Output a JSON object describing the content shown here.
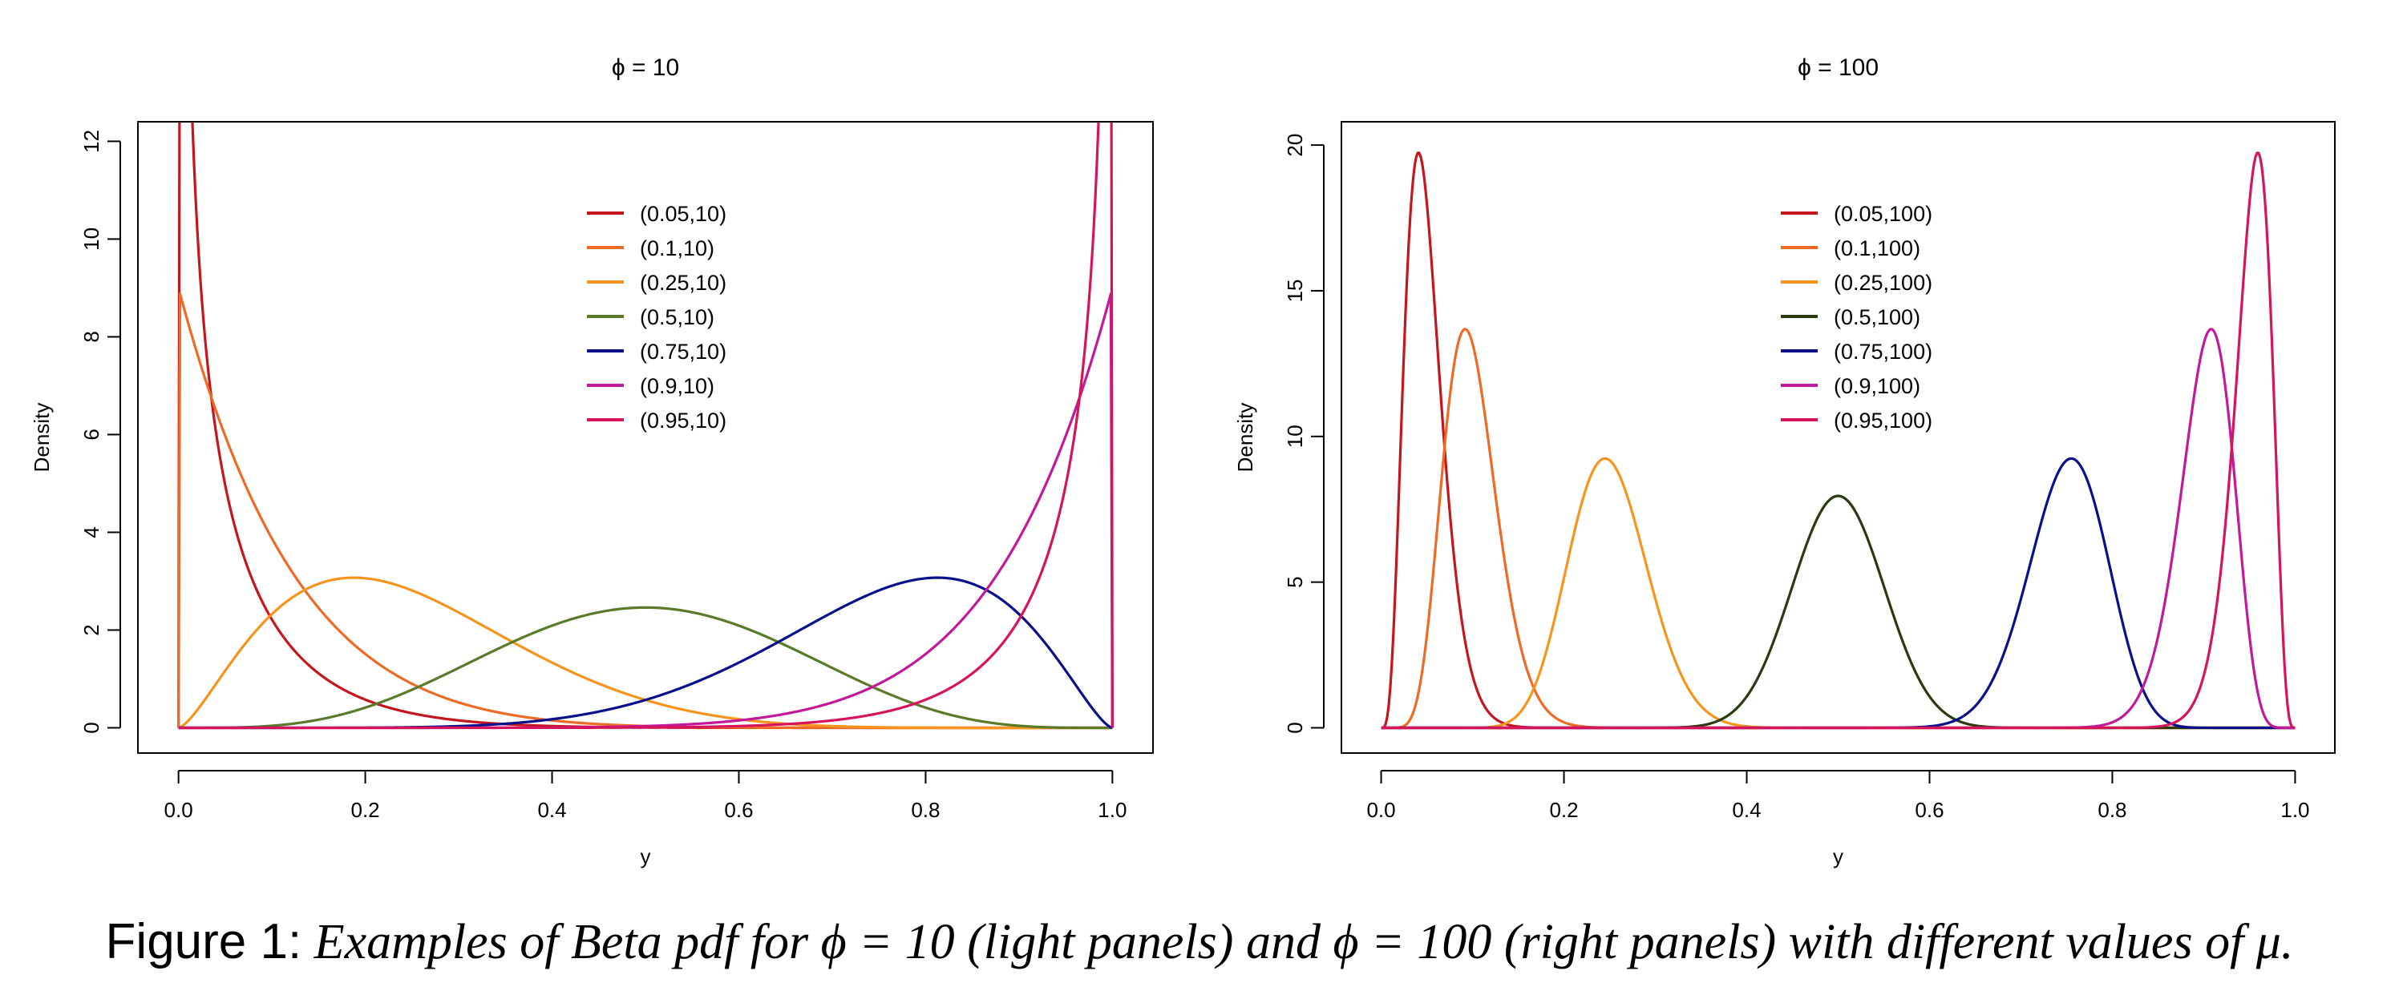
{
  "figure": {
    "caption_label": "Figure 1:",
    "caption_text": " Examples of Beta pdf for ϕ = 10 (light panels) and ϕ = 100 (right panels) with different values of μ."
  },
  "chart_data": [
    {
      "type": "line",
      "title": "ϕ = 10",
      "xlabel": "y",
      "ylabel": "Density",
      "xlim": [
        0,
        1
      ],
      "ylim": [
        0,
        12.4
      ],
      "xticks": [
        0.0,
        0.2,
        0.4,
        0.6,
        0.8,
        1.0
      ],
      "xtick_labels": [
        "0.0",
        "0.2",
        "0.4",
        "0.6",
        "0.8",
        "1.0"
      ],
      "yticks": [
        0,
        2,
        4,
        6,
        8,
        10,
        12
      ],
      "ytick_labels": [
        "0",
        "2",
        "4",
        "6",
        "8",
        "10",
        "12"
      ],
      "grid": false,
      "legend_position": "top-center",
      "phi": 10,
      "series": [
        {
          "name": "(0.05,10)",
          "mu": 0.05,
          "color": "#c4161c"
        },
        {
          "name": "(0.1,10)",
          "mu": 0.1,
          "color": "#ef6a25"
        },
        {
          "name": "(0.25,10)",
          "mu": 0.25,
          "color": "#f7941d"
        },
        {
          "name": "(0.5,10)",
          "mu": 0.5,
          "color": "#5a7a2a"
        },
        {
          "name": "(0.75,10)",
          "mu": 0.75,
          "color": "#0a0f8c"
        },
        {
          "name": "(0.9,10)",
          "mu": 0.9,
          "color": "#c2199b"
        },
        {
          "name": "(0.95,10)",
          "mu": 0.95,
          "color": "#d6145c"
        }
      ]
    },
    {
      "type": "line",
      "title": "ϕ = 100",
      "xlabel": "y",
      "ylabel": "Density",
      "xlim": [
        0,
        1
      ],
      "ylim": [
        0,
        20.8
      ],
      "xticks": [
        0.0,
        0.2,
        0.4,
        0.6,
        0.8,
        1.0
      ],
      "xtick_labels": [
        "0.0",
        "0.2",
        "0.4",
        "0.6",
        "0.8",
        "1.0"
      ],
      "yticks": [
        0,
        5,
        10,
        15,
        20
      ],
      "ytick_labels": [
        "0",
        "5",
        "10",
        "15",
        "20"
      ],
      "grid": false,
      "legend_position": "top-center",
      "phi": 100,
      "series": [
        {
          "name": "(0.05,100)",
          "mu": 0.05,
          "color": "#c4161c"
        },
        {
          "name": "(0.1,100)",
          "mu": 0.1,
          "color": "#ef6a25"
        },
        {
          "name": "(0.25,100)",
          "mu": 0.25,
          "color": "#f7941d"
        },
        {
          "name": "(0.5,100)",
          "mu": 0.5,
          "color": "#2a3a10"
        },
        {
          "name": "(0.75,100)",
          "mu": 0.75,
          "color": "#0a0f8c"
        },
        {
          "name": "(0.9,100)",
          "mu": 0.9,
          "color": "#c2199b"
        },
        {
          "name": "(0.95,100)",
          "mu": 0.95,
          "color": "#d6145c"
        }
      ]
    }
  ]
}
